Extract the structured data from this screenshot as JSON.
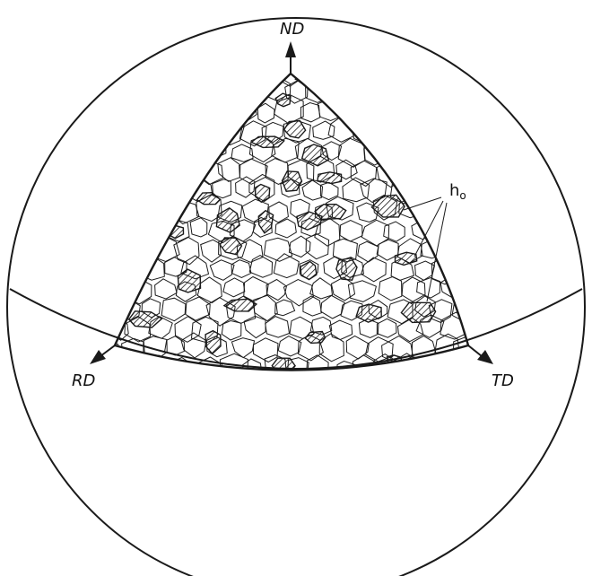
{
  "axes": {
    "nd": "ND",
    "rd": "RD",
    "td": "TD"
  },
  "annotation": {
    "main": "h",
    "sub": "o"
  },
  "colors": {
    "ink": "#1a1a1a",
    "background": "#ffffff"
  }
}
